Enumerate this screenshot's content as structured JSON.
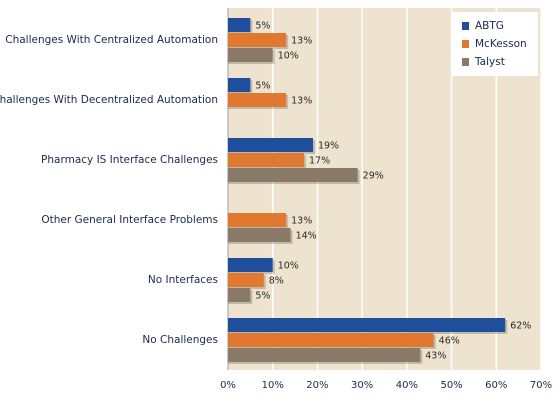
{
  "chart_data": {
    "type": "hbar",
    "categories": [
      "Challenges With Centralized Automation",
      "Challenges With Decentralized Automation",
      "Pharmacy IS Interface Challenges",
      "Other General Interface Problems",
      "No Interfaces",
      "No Challenges"
    ],
    "series": [
      {
        "name": "ABTG",
        "color": "#1f4e9c",
        "values": [
          5,
          5,
          19,
          null,
          10,
          62
        ],
        "value_labels": [
          "5%",
          "5%",
          "19%",
          null,
          "10%",
          "62%"
        ]
      },
      {
        "name": "McKesson",
        "color": "#e0782f",
        "values": [
          13,
          13,
          17,
          13,
          8,
          46
        ],
        "value_labels": [
          "13%",
          "13%",
          "17%",
          "13%",
          "8%",
          "46%"
        ]
      },
      {
        "name": "Talyst",
        "color": "#8b7a68",
        "values": [
          10,
          null,
          29,
          14,
          5,
          43
        ],
        "value_labels": [
          "10%",
          null,
          "29%",
          "14%",
          "5%",
          "43%"
        ]
      }
    ],
    "xlim": [
      0,
      70
    ],
    "xticks": [
      {
        "value": 0,
        "label": "0%"
      },
      {
        "value": 10,
        "label": "10%"
      },
      {
        "value": 20,
        "label": "20%"
      },
      {
        "value": 30,
        "label": "30%"
      },
      {
        "value": 40,
        "label": "40%"
      },
      {
        "value": 50,
        "label": "50%"
      },
      {
        "value": 60,
        "label": "60%"
      },
      {
        "value": 70,
        "label": "70%"
      }
    ],
    "grid": true,
    "legend": "upper right"
  }
}
